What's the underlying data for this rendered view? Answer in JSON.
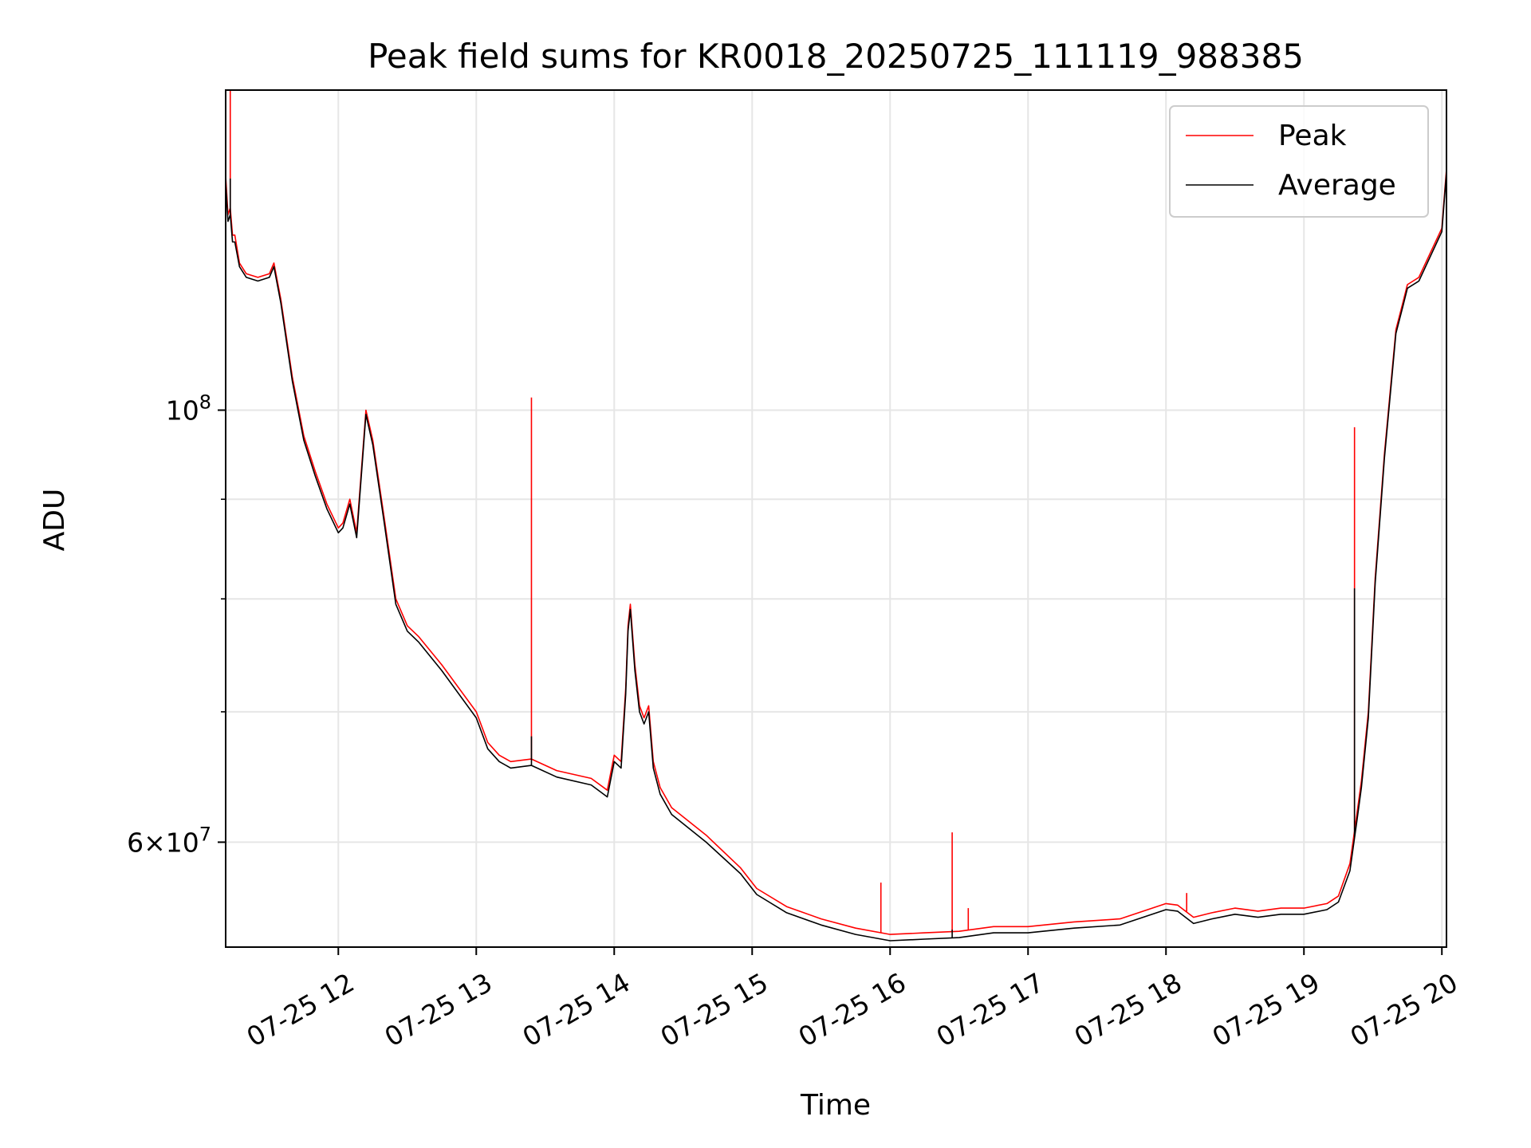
{
  "chart_data": {
    "type": "line",
    "title": "Peak field sums for KR0018_20250725_111119_988385",
    "xlabel": "Time",
    "ylabel": "ADU",
    "y_scale": "log",
    "ylim": [
      53000000,
      146000000
    ],
    "xlim": [
      "07-25 11:11",
      "07-25 20:02"
    ],
    "grid": true,
    "legend_position": "top-right",
    "x_tick_labels": [
      "07-25 12",
      "07-25 13",
      "07-25 14",
      "07-25 15",
      "07-25 16",
      "07-25 17",
      "07-25 18",
      "07-25 19",
      "07-25 20"
    ],
    "x_tick_values": [
      "12:00",
      "13:00",
      "14:00",
      "15:00",
      "16:00",
      "17:00",
      "18:00",
      "19:00",
      "20:00"
    ],
    "y_major_ticks": [
      {
        "value": 60000000,
        "base": "6×10",
        "exp": "7"
      },
      {
        "value": 100000000,
        "base": "10",
        "exp": "8"
      }
    ],
    "y_minor_ticks": [
      70000000,
      80000000,
      90000000
    ],
    "x_time": [
      "11:11",
      "11:12",
      "11:13",
      "11:14",
      "11:15",
      "11:17",
      "11:20",
      "11:25",
      "11:30",
      "11:32",
      "11:35",
      "11:40",
      "11:45",
      "11:50",
      "11:55",
      "12:00",
      "12:02",
      "12:05",
      "12:08",
      "12:12",
      "12:15",
      "12:20",
      "12:25",
      "12:30",
      "12:35",
      "12:45",
      "13:00",
      "13:05",
      "13:10",
      "13:15",
      "13:24",
      "13:35",
      "13:50",
      "13:57",
      "14:00",
      "14:03",
      "14:05",
      "14:06",
      "14:07",
      "14:09",
      "14:11",
      "14:13",
      "14:15",
      "14:17",
      "14:20",
      "14:25",
      "14:40",
      "14:55",
      "15:02",
      "15:15",
      "15:30",
      "15:45",
      "16:00",
      "16:15",
      "16:30",
      "16:45",
      "17:00",
      "17:20",
      "17:40",
      "18:00",
      "18:05",
      "18:12",
      "18:20",
      "18:30",
      "18:40",
      "18:50",
      "19:00",
      "19:10",
      "19:15",
      "19:20",
      "19:23",
      "19:25",
      "19:28",
      "19:31",
      "19:35",
      "19:40",
      "19:43",
      "19:45",
      "19:50",
      "20:00",
      "20:02"
    ],
    "series": [
      {
        "name": "Peak",
        "color": "#ff0000",
        "values": [
          132000000,
          126000000,
          127000000,
          123000000,
          123000000,
          119000000,
          117500000,
          117000000,
          117500000,
          119000000,
          114000000,
          104000000,
          97000000,
          93000000,
          89500000,
          87000000,
          87500000,
          90000000,
          86500000,
          100000000,
          96500000,
          88000000,
          80000000,
          77500000,
          76500000,
          74000000,
          70000000,
          67500000,
          66500000,
          66000000,
          66200000,
          65300000,
          64700000,
          63800000,
          66500000,
          66000000,
          72000000,
          77500000,
          79500000,
          74000000,
          70500000,
          69500000,
          70500000,
          66000000,
          64000000,
          62500000,
          60500000,
          58200000,
          56800000,
          55600000,
          54800000,
          54200000,
          53800000,
          53900000,
          54000000,
          54300000,
          54300000,
          54600000,
          54800000,
          55800000,
          55700000,
          54900000,
          55200000,
          55500000,
          55300000,
          55500000,
          55500000,
          55800000,
          56300000,
          58500000,
          62000000,
          64500000,
          70000000,
          82000000,
          95000000,
          110000000,
          113500000,
          116000000,
          117000000,
          124000000,
          133000000
        ]
      },
      {
        "name": "Average",
        "color": "#000000",
        "values": [
          131000000,
          125000000,
          126000000,
          122000000,
          122000000,
          118500000,
          117000000,
          116500000,
          117000000,
          118500000,
          113500000,
          103500000,
          96500000,
          92500000,
          89000000,
          86500000,
          87000000,
          89500000,
          86000000,
          99500000,
          96000000,
          87500000,
          79500000,
          77000000,
          76000000,
          73500000,
          69500000,
          67000000,
          66000000,
          65500000,
          65700000,
          64800000,
          64200000,
          63300000,
          66000000,
          65500000,
          71500000,
          77000000,
          79000000,
          73500000,
          70000000,
          69000000,
          70000000,
          65500000,
          63500000,
          62000000,
          60000000,
          57800000,
          56400000,
          55200000,
          54400000,
          53800000,
          53400000,
          53500000,
          53600000,
          53900000,
          53900000,
          54200000,
          54400000,
          55400000,
          55300000,
          54500000,
          54800000,
          55100000,
          54900000,
          55100000,
          55100000,
          55400000,
          55900000,
          58000000,
          61500000,
          64000000,
          69500000,
          81500000,
          94500000,
          109500000,
          113000000,
          115500000,
          116500000,
          123500000,
          132500000
        ]
      }
    ],
    "spikes": [
      {
        "series": "Peak",
        "time": "11:13",
        "value": 146000000
      },
      {
        "series": "Average",
        "time": "11:13",
        "value": 131500000
      },
      {
        "series": "Peak",
        "time": "13:24",
        "value": 101500000
      },
      {
        "series": "Average",
        "time": "13:24",
        "value": 68000000
      },
      {
        "series": "Peak",
        "time": "15:56",
        "value": 57200000
      },
      {
        "series": "Peak",
        "time": "16:27",
        "value": 60700000
      },
      {
        "series": "Average",
        "time": "16:27",
        "value": 54100000
      },
      {
        "series": "Peak",
        "time": "16:34",
        "value": 55500000
      },
      {
        "series": "Peak",
        "time": "18:09",
        "value": 56500000
      },
      {
        "series": "Peak",
        "time": "19:22",
        "value": 98000000
      },
      {
        "series": "Average",
        "time": "19:22",
        "value": 81000000
      }
    ]
  }
}
